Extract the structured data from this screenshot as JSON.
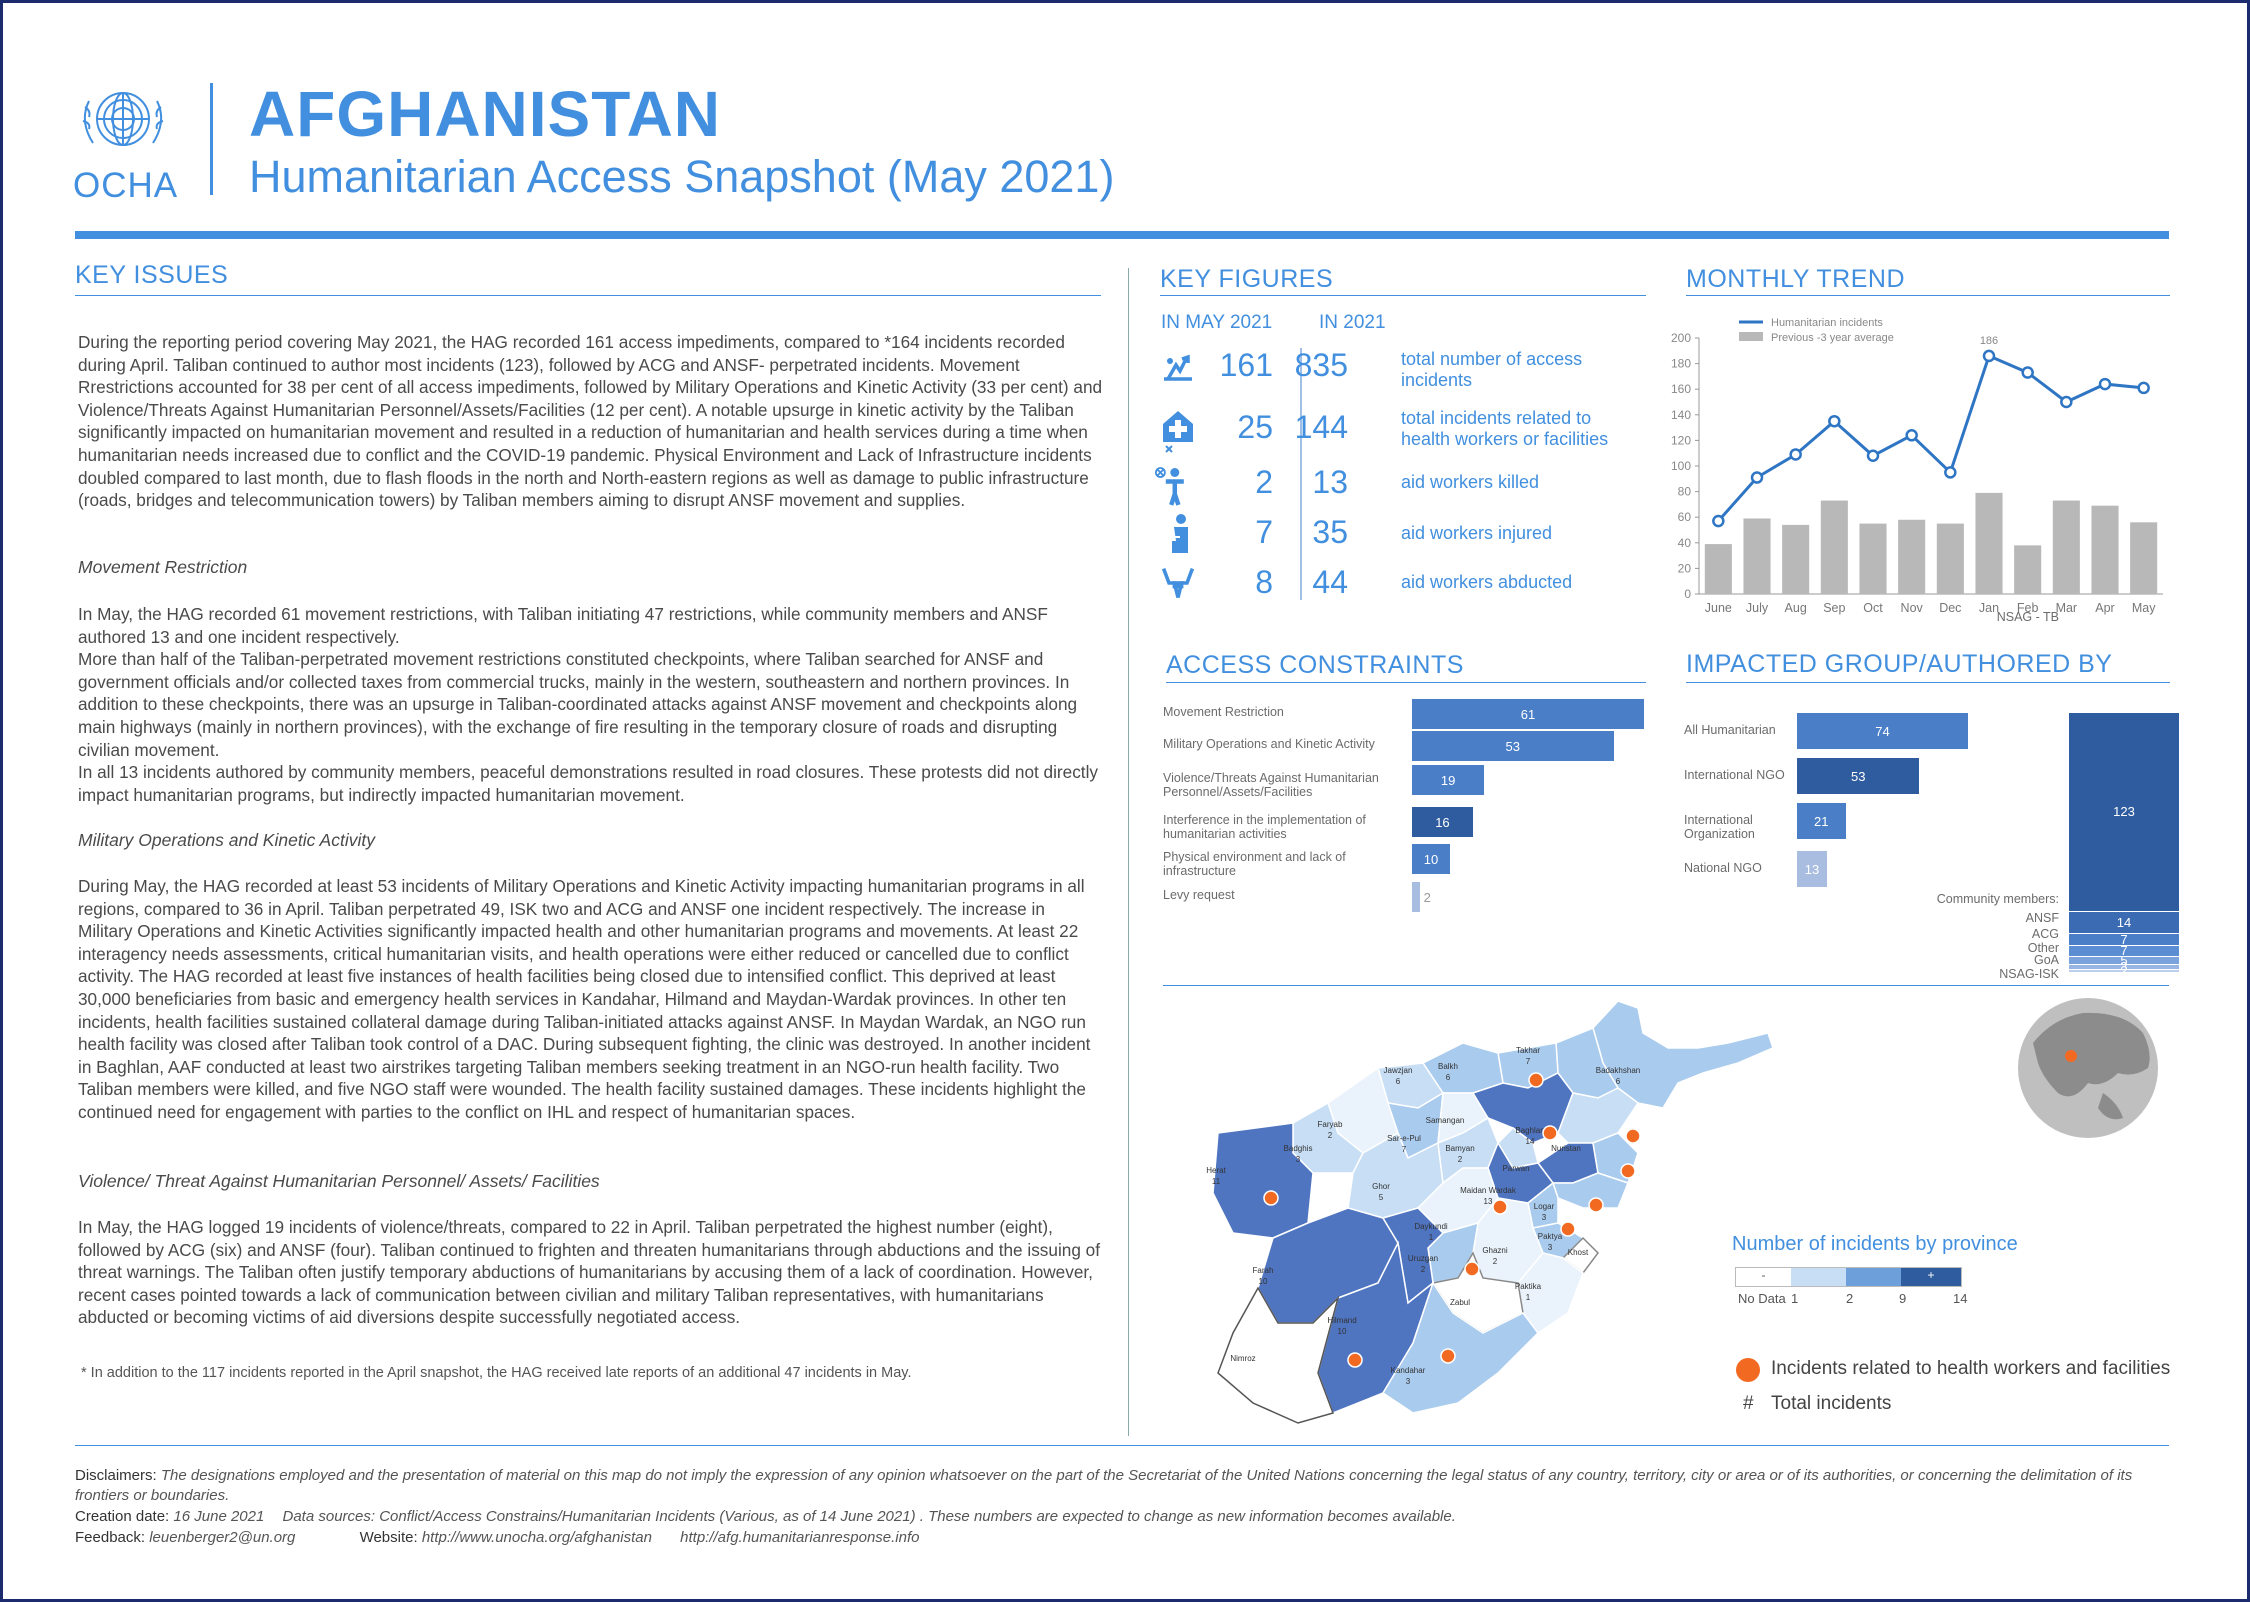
{
  "header": {
    "org": "OCHA",
    "title": "AFGHANISTAN",
    "subtitle": "Humanitarian Access Snapshot (May 2021)"
  },
  "key_issues": {
    "heading": "KEY ISSUES",
    "intro": "During the reporting period covering May 2021, the HAG recorded 161 access impediments, compared to *164 incidents recorded during April.  Taliban continued to author most incidents (123), followed by ACG and ANSF- perpetrated incidents. Movement Rrestrictions accounted for 38 per cent of all access impediments, followed by Military Operations and Kinetic Activity (33 per cent) and Violence/Threats Against Humanitarian Personnel/Assets/Facilities (12 per cent). A notable upsurge in kinetic activity by the Taliban significantly impacted on humanitarian movement and resulted in a reduction of humanitarian and health services during a time when humanitarian needs increased due to conflict and the COVID-19 pandemic. Physical Environment and Lack of Infrastructure incidents doubled compared to last month, due to flash floods in the north and North-eastern regions as well as damage to public infrastructure (roads, bridges and telecommunication towers) by Taliban members aiming to disrupt ANSF movement and supplies.",
    "h1": "Movement Restriction",
    "p1": "In May, the HAG recorded 61 movement restrictions, with Taliban initiating 47 restrictions, while community members and ANSF authored 13 and one incident respectively.\nMore than half of the Taliban-perpetrated movement restrictions constituted checkpoints, where Taliban searched for ANSF and government officials and/or collected taxes from commercial trucks, mainly in the western, southeastern and northern provinces. In addition to these checkpoints, there was an upsurge in Taliban-coordinated attacks against ANSF movement and checkpoints along main highways (mainly in northern provinces), with the exchange of fire resulting in the temporary closure of roads and disrupting civilian movement.\nIn all 13 incidents authored by community members, peaceful demonstrations resulted in road closures. These protests did not directly impact humanitarian programs, but indirectly impacted humanitarian movement.",
    "h2": "Military Operations and Kinetic Activity",
    "p2": "During May, the HAG recorded at least 53 incidents of Military Operations and Kinetic Activity impacting humanitarian programs in all regions, compared to 36 in April. Taliban perpetrated 49, ISK two and ACG and ANSF one incident respectively. The increase in Military Operations and Kinetic Activities significantly impacted health and other humanitarian programs and movements. At least 22 interagency needs assessments, critical humanitarian visits, and health operations were either reduced or cancelled due to conflict activity. The HAG recorded at least five instances of health facilities being closed due to intensified conflict. This deprived at least 30,000 beneficiaries from basic and emergency health services in Kandahar, Hilmand and Maydan-Wardak provinces. In other ten incidents, health facilities sustained collateral damage during Taliban-initiated attacks against ANSF. In Maydan Wardak, an NGO run health facility was closed after Taliban took control of a DAC. During subsequent fighting, the clinic was destroyed. In another incident in Baghlan, AAF conducted at least two airstrikes targeting Taliban members seeking treatment in an NGO-run health facility. Two Taliban members were killed, and five NGO staff were wounded. The health facility sustained damages. These incidents highlight the continued need for engagement with parties to the conflict on IHL and respect of humanitarian spaces.",
    "h3": "Violence/ Threat Against Humanitarian Personnel/ Assets/ Facilities",
    "p3": "In May, the HAG logged 19 incidents of violence/threats, compared to 22 in April. Taliban perpetrated the highest number (eight), followed by ACG (six) and ANSF (four). Taliban continued to frighten and threaten humanitarians through abductions and the issuing of threat warnings. The Taliban often justify temporary abductions of humanitarians by accusing them of a lack of coordination. However, recent cases pointed towards a lack of communication between civilian and military Taliban representatives, with humanitarians abducted or becoming victims of aid diversions despite successfully negotiated access.",
    "footnote": "* In addition to the 117 incidents reported in the April snapshot, the HAG received late reports of an additional 47 incidents in May."
  },
  "key_figures": {
    "heading": "KEY FIGURES",
    "col1": "IN MAY 2021",
    "col2": "IN 2021",
    "rows": [
      {
        "icon": "access-impediment-icon",
        "may": "161",
        "year": "835",
        "desc": "total number of access incidents"
      },
      {
        "icon": "health-facility-icon",
        "may": "25",
        "year": "144",
        "desc": "total incidents related to health workers or facilities"
      },
      {
        "icon": "aid-worker-killed-icon",
        "may": "2",
        "year": "13",
        "desc": "aid workers killed"
      },
      {
        "icon": "aid-worker-injured-icon",
        "may": "7",
        "year": "35",
        "desc": "aid workers injured"
      },
      {
        "icon": "aid-worker-abducted-icon",
        "may": "8",
        "year": "44",
        "desc": "aid workers abducted"
      }
    ]
  },
  "monthly_trend": {
    "heading": "MONTHLY TREND",
    "legend_line": "Humanitarian incidents",
    "legend_bar": "Previous -3 year average",
    "peak_label": "186"
  },
  "access_constraints": {
    "heading": "ACCESS CONSTRAINTS"
  },
  "impacted_group": {
    "heading": "IMPACTED GROUP/AUTHORED BY"
  },
  "map": {
    "legend_title": "Number of incidents by province",
    "scale_ticks": [
      "No Data",
      "1",
      "2",
      "9",
      "14"
    ],
    "scale_marks": [
      "-",
      "+"
    ],
    "legend_health": "Incidents related to health workers and facilities",
    "legend_total": "Total incidents",
    "legend_total_symbol": "#",
    "provinces": [
      {
        "name": "Jawzjan",
        "count": "6"
      },
      {
        "name": "Balkh",
        "count": "6"
      },
      {
        "name": "Takhar",
        "count": "7"
      },
      {
        "name": "Badakhshan",
        "count": "6"
      },
      {
        "name": "Faryab",
        "count": "2"
      },
      {
        "name": "Sar-e-Pul",
        "count": "7"
      },
      {
        "name": "Samangan",
        "count": ""
      },
      {
        "name": "Baghlan",
        "count": "14"
      },
      {
        "name": "Badghis",
        "count": "3"
      },
      {
        "name": "Bamyan",
        "count": "2"
      },
      {
        "name": "Parwan",
        "count": ""
      },
      {
        "name": "Nuristan",
        "count": ""
      },
      {
        "name": "Herat",
        "count": "11"
      },
      {
        "name": "Ghor",
        "count": "5"
      },
      {
        "name": "Maidan Wardak",
        "count": "13"
      },
      {
        "name": "Logar",
        "count": "3"
      },
      {
        "name": "Daykundi",
        "count": "1"
      },
      {
        "name": "Paktya",
        "count": "3"
      },
      {
        "name": "Ghazni",
        "count": "2"
      },
      {
        "name": "Khost",
        "count": ""
      },
      {
        "name": "Uruzgan",
        "count": "2"
      },
      {
        "name": "Paktika",
        "count": "1"
      },
      {
        "name": "Zabul",
        "count": ""
      },
      {
        "name": "Farah",
        "count": "10"
      },
      {
        "name": "Hilmand",
        "count": "10"
      },
      {
        "name": "Kandahar",
        "count": "3"
      },
      {
        "name": "Nimroz",
        "count": ""
      }
    ]
  },
  "footer": {
    "disclaimer_label": "Disclaimers:",
    "disclaimer": "The designations employed and the presentation of material on this map do not imply the expression of any opinion whatsoever on the part of the Secretariat of the United Nations concerning the legal status of any country, territory, city or area or of its authorities, or concerning the delimitation of its frontiers or boundaries.",
    "creation_label": "Creation date:",
    "creation_date": "16 June 2021",
    "sources": "Data sources: Conflict/Access Constrains/Humanitarian Incidents (Various, as of 14 June 2021) . These numbers are expected to change as new information becomes available.",
    "feedback_label": "Feedback:",
    "feedback": "leuenberger2@un.org",
    "website_label": "Website:",
    "website1": "http://www.unocha.org/afghanistan",
    "website2": "http://afg.humanitarianresponse.info"
  },
  "colors": {
    "brand_blue": "#418fde",
    "dark_blue": "#2e5c9e",
    "bar_blue": "#4a7fc7",
    "gray_bar": "#b8b8b8",
    "health_orange": "#f26a21",
    "frame": "#1c2a6e"
  },
  "chart_data": [
    {
      "type": "line",
      "title": "MONTHLY TREND",
      "categories": [
        "June",
        "July",
        "Aug",
        "Sep",
        "Oct",
        "Nov",
        "Dec",
        "Jan",
        "Feb",
        "Mar",
        "Apr",
        "May"
      ],
      "series": [
        {
          "name": "Humanitarian incidents",
          "kind": "line",
          "values": [
            57,
            91,
            109,
            135,
            108,
            124,
            95,
            186,
            173,
            150,
            164,
            161
          ]
        },
        {
          "name": "Previous -3 year average",
          "kind": "bar",
          "values": [
            39,
            59,
            54,
            73,
            55,
            58,
            55,
            79,
            38,
            73,
            69,
            56
          ]
        }
      ],
      "yticks": [
        "0",
        "20",
        "40",
        "60",
        "80",
        "100",
        "120",
        "140",
        "160",
        "180",
        "200"
      ],
      "ylim": [
        0,
        200
      ],
      "legend": "top-left"
    },
    {
      "type": "bar",
      "title": "ACCESS CONSTRAINTS",
      "orientation": "horizontal",
      "categories": [
        "Movement Restriction",
        "Military Operations and Kinetic Activity",
        "Violence/Threats Against Humanitarian Personnel/Assets/Facilities",
        "Interference in the implementation of humanitarian activities",
        "Physical environment and lack of infrastructure",
        "Levy request"
      ],
      "values": [
        61,
        53,
        19,
        16,
        10,
        2
      ]
    },
    {
      "type": "bar",
      "title": "IMPACTED GROUP",
      "orientation": "horizontal",
      "categories": [
        "All Humanitarian",
        "International  NGO",
        "International Organization",
        "National NGO"
      ],
      "values": [
        74,
        53,
        21,
        13
      ]
    },
    {
      "type": "bar",
      "title": "AUTHORED BY",
      "orientation": "stacked",
      "categories": [
        "NSAG - TB",
        "Community members",
        "ANSF",
        "ACG",
        "Other",
        "GoA",
        "NSAG-ISK"
      ],
      "values": [
        123,
        14,
        7,
        7,
        5,
        3,
        2
      ]
    }
  ]
}
